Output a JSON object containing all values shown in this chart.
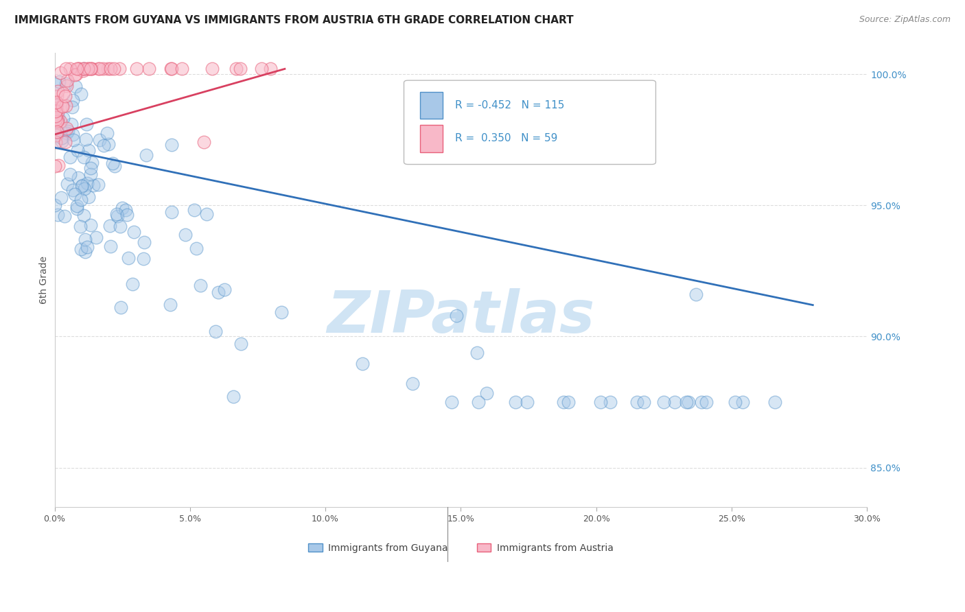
{
  "title": "IMMIGRANTS FROM GUYANA VS IMMIGRANTS FROM AUSTRIA 6TH GRADE CORRELATION CHART",
  "source": "Source: ZipAtlas.com",
  "ylabel": "6th Grade",
  "ylabel_right_ticks": [
    "100.0%",
    "95.0%",
    "90.0%",
    "85.0%"
  ],
  "ylabel_right_vals": [
    1.0,
    0.95,
    0.9,
    0.85
  ],
  "xmin": 0.0,
  "xmax": 0.3,
  "ymin": 0.835,
  "ymax": 1.008,
  "blue_color": "#a8c8e8",
  "pink_color": "#f8b8c8",
  "blue_edge_color": "#5090c8",
  "pink_edge_color": "#e8607a",
  "blue_line_color": "#3070b8",
  "pink_line_color": "#d84060",
  "watermark_text": "ZIPatlas",
  "watermark_color": "#d0e4f4",
  "grid_color": "#dddddd",
  "background_color": "#ffffff",
  "title_fontsize": 11,
  "right_tick_color": "#4090c8",
  "blue_trend_x": [
    0.0,
    0.28
  ],
  "blue_trend_y": [
    0.972,
    0.912
  ],
  "pink_trend_x": [
    0.0,
    0.085
  ],
  "pink_trend_y": [
    0.977,
    1.002
  ]
}
